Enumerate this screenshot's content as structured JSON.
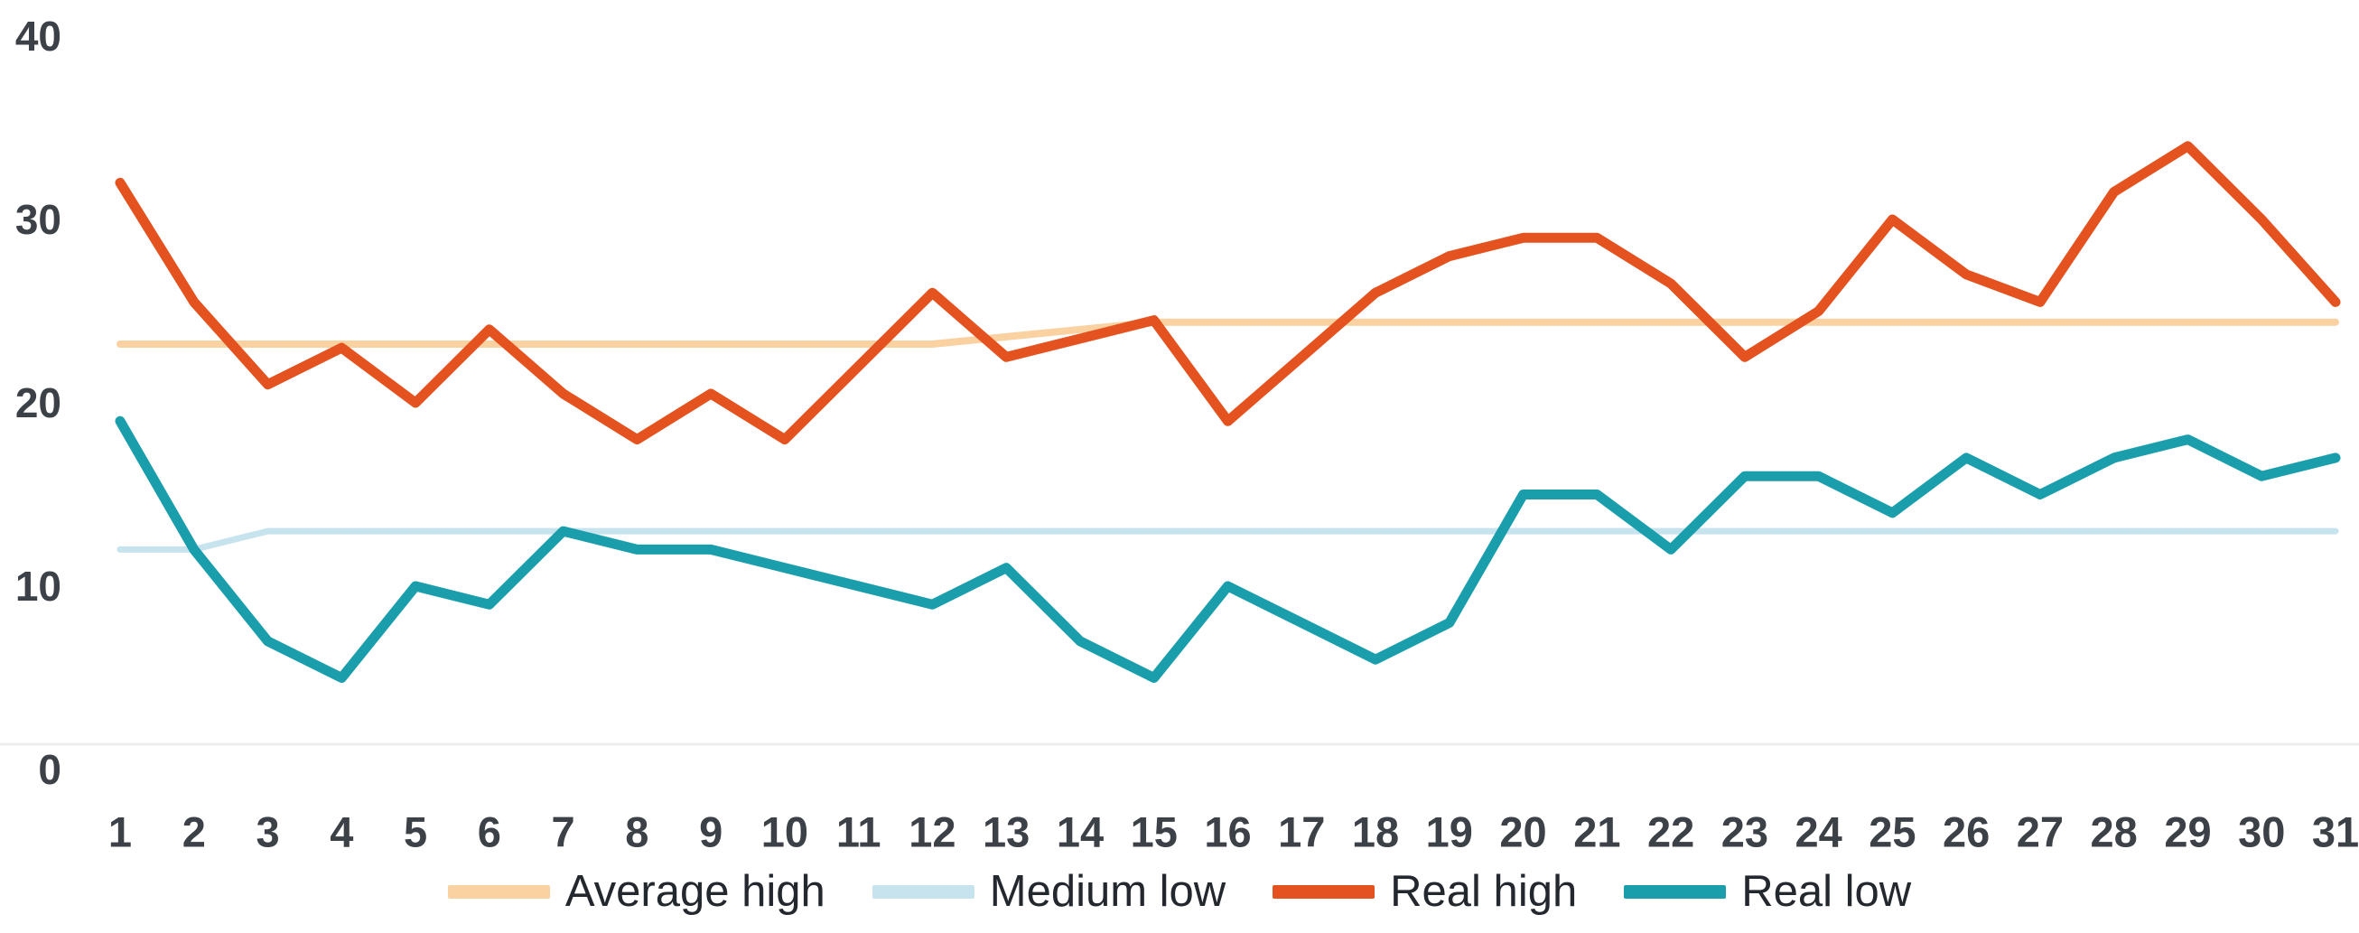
{
  "chart_data": {
    "type": "line",
    "title": "",
    "xlabel": "",
    "ylabel": "",
    "categories": [
      1,
      2,
      3,
      4,
      5,
      6,
      7,
      8,
      9,
      10,
      11,
      12,
      13,
      14,
      15,
      16,
      17,
      18,
      19,
      20,
      21,
      22,
      23,
      24,
      25,
      26,
      27,
      28,
      29,
      30,
      31
    ],
    "series": [
      {
        "name": "Average high",
        "color": "#FAD2A2",
        "line_width": 8,
        "values": [
          23.2,
          23.2,
          23.2,
          23.2,
          23.2,
          23.2,
          23.2,
          23.2,
          23.2,
          23.2,
          23.2,
          23.2,
          23.6,
          24.0,
          24.4,
          24.4,
          24.4,
          24.4,
          24.4,
          24.4,
          24.4,
          24.4,
          24.4,
          24.4,
          24.4,
          24.4,
          24.4,
          24.4,
          24.4,
          24.4,
          24.4
        ]
      },
      {
        "name": "Medium low",
        "color": "#C7E3EE",
        "line_width": 7,
        "values": [
          12,
          12,
          13,
          13,
          13,
          13,
          13,
          13,
          13,
          13,
          13,
          13,
          13,
          13,
          13,
          13,
          13,
          13,
          13,
          13,
          13,
          13,
          13,
          13,
          13,
          13,
          13,
          13,
          13,
          13,
          13
        ]
      },
      {
        "name": "Real high",
        "color": "#E4521F",
        "line_width": 11,
        "values": [
          32,
          25.5,
          21,
          23,
          20,
          24,
          20.5,
          18,
          20.5,
          18,
          22,
          26,
          22.5,
          23.5,
          24.5,
          19,
          22.5,
          26,
          28,
          29,
          29,
          26.5,
          22.5,
          25,
          30,
          27,
          25.5,
          31.5,
          34,
          30,
          25.5
        ]
      },
      {
        "name": "Real low",
        "color": "#1A9EAC",
        "line_width": 11,
        "values": [
          19,
          12,
          7,
          5,
          10,
          9,
          13,
          12,
          12,
          11,
          10,
          9,
          11,
          7,
          5,
          10,
          8,
          6,
          8,
          15,
          15,
          12,
          16,
          16,
          14,
          17,
          15,
          17,
          18,
          16,
          17
        ]
      }
    ],
    "y_ticks": [
      "0",
      "10",
      "20",
      "30",
      "40"
    ],
    "y_tick_values": [
      0,
      10,
      20,
      30,
      40
    ],
    "ylim": [
      0,
      40
    ],
    "grid": false,
    "legend_position": "bottom",
    "axis_label_color": "#3C4147",
    "legend_text_color": "#23272E",
    "baseline_color": "#EDEDED",
    "background": "#FFFFFF"
  }
}
